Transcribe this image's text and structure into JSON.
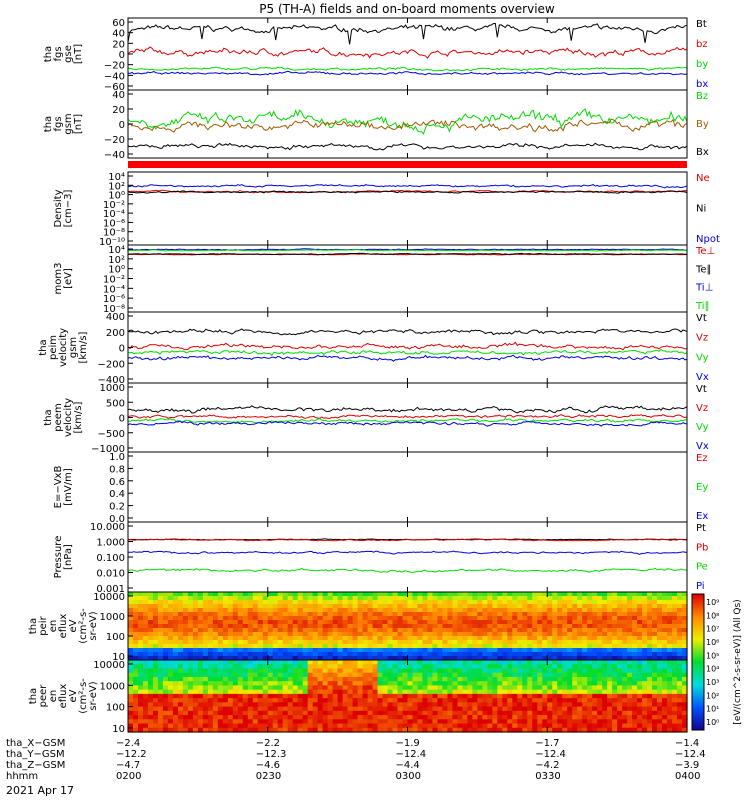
{
  "title": "P5 (TH-A) fields and on-board moments overview",
  "date": "2021 Apr 17",
  "colors": {
    "black": "#000000",
    "red": "#e00000",
    "green": "#00dd00",
    "blue": "#0000dd",
    "dark_red": "#990000",
    "brown": "#a05a00",
    "stripe": "#ff0000"
  },
  "chart_data": [
    {
      "type": "line",
      "id": "fgs_gse",
      "ylabel": [
        "tha",
        "fgs",
        "gse",
        "[nT]"
      ],
      "yticks": [
        "60",
        "40",
        "20",
        "0",
        "−20",
        "−40",
        "−60"
      ],
      "ylim": [
        -65,
        65
      ],
      "log": false,
      "series": [
        {
          "name": "Bt",
          "color": "#000000",
          "level": 45,
          "noise": 9,
          "dips": true
        },
        {
          "name": "bz",
          "color": "#e00000",
          "level": 3,
          "noise": 10
        },
        {
          "name": "by",
          "color": "#00dd00",
          "level": -27,
          "noise": 4
        },
        {
          "name": "bx",
          "color": "#0000dd",
          "level": -35,
          "noise": 4
        }
      ]
    },
    {
      "type": "line",
      "id": "fgs_gsm",
      "ylabel": [
        "tha",
        "fgs",
        "gsm",
        "[nT]"
      ],
      "yticks": [
        "40",
        "20",
        "0",
        "−20",
        "−40"
      ],
      "ylim": [
        -50,
        50
      ],
      "log": false,
      "series": [
        {
          "name": "Bz",
          "color": "#00dd00",
          "level": 5,
          "noise": 16
        },
        {
          "name": "By",
          "color": "#a05a00",
          "level": -2,
          "noise": 12
        },
        {
          "name": "Bx",
          "color": "#000000",
          "level": -33,
          "noise": 6
        }
      ]
    },
    {
      "type": "line",
      "id": "density",
      "ylabel": [
        "Density",
        "[cm−3]"
      ],
      "yticks": [
        "10⁴",
        "10²",
        "10⁰",
        "10⁻²",
        "10⁻⁴",
        "10⁻⁶",
        "10⁻⁸",
        "10⁻¹⁰"
      ],
      "ylim": [
        -10.5,
        4.5
      ],
      "log": true,
      "series": [
        {
          "name": "Ne",
          "color": "#e00000",
          "level": 0.5,
          "noise": 0.3
        },
        {
          "name": "Ni",
          "color": "#000000",
          "level": 0.4,
          "noise": 0.3
        },
        {
          "name": "Npot",
          "color": "#0000dd",
          "level": 1.6,
          "noise": 0.4
        }
      ]
    },
    {
      "type": "line",
      "id": "temperature",
      "ylabel": [
        "mom3",
        "[eV]"
      ],
      "yticks": [
        "10⁴",
        "10²",
        "10⁰",
        "10⁻²",
        "10⁻⁴",
        "10⁻⁶",
        "10⁻⁸"
      ],
      "ylim": [
        -9,
        4.5
      ],
      "log": true,
      "series": [
        {
          "name": "Te⊥",
          "color": "#e00000",
          "level": 2.6,
          "noise": 0.15
        },
        {
          "name": "Te∥",
          "color": "#000000",
          "level": 2.7,
          "noise": 0.15
        },
        {
          "name": "Ti⊥",
          "color": "#0000dd",
          "level": 3.6,
          "noise": 0.15
        },
        {
          "name": "Ti∥",
          "color": "#00dd00",
          "level": 3.4,
          "noise": 0.15
        }
      ]
    },
    {
      "type": "line",
      "id": "peim_velocity",
      "ylabel": [
        "tha",
        "peim",
        "velocity",
        "gsm",
        "[km/s]"
      ],
      "yticks": [
        "400",
        "200",
        "0",
        "−200",
        "−400"
      ],
      "ylim": [
        -440,
        440
      ],
      "log": false,
      "series": [
        {
          "name": "Vt",
          "color": "#000000",
          "level": 200,
          "noise": 45
        },
        {
          "name": "Vz",
          "color": "#e00000",
          "level": 10,
          "noise": 45
        },
        {
          "name": "Vy",
          "color": "#00dd00",
          "level": -60,
          "noise": 40
        },
        {
          "name": "Vx",
          "color": "#0000dd",
          "level": -130,
          "noise": 40
        }
      ]
    },
    {
      "type": "line",
      "id": "peem_velocity",
      "ylabel": [
        "tha",
        "peem",
        "velocity",
        "[km/s]"
      ],
      "yticks": [
        "1000",
        "500",
        "0",
        "−500",
        "−1000"
      ],
      "ylim": [
        -1050,
        1050
      ],
      "log": false,
      "series": [
        {
          "name": "Vt",
          "color": "#000000",
          "level": 250,
          "noise": 120
        },
        {
          "name": "Vz",
          "color": "#e00000",
          "level": 40,
          "noise": 80
        },
        {
          "name": "Vy",
          "color": "#00dd00",
          "level": -100,
          "noise": 80
        },
        {
          "name": "Vx",
          "color": "#0000dd",
          "level": -180,
          "noise": 90
        }
      ]
    },
    {
      "type": "line",
      "id": "efield",
      "ylabel": [
        "E=−VxB",
        "[mV/m]"
      ],
      "yticks": [
        "1.0",
        "0.8",
        "0.6",
        "0.4",
        "0.2",
        "0.0"
      ],
      "ylim": [
        -0.02,
        1.02
      ],
      "log": false,
      "series": [
        {
          "name": "Ez",
          "color": "#e00000"
        },
        {
          "name": "Ey",
          "color": "#00dd00"
        },
        {
          "name": "Ex",
          "color": "#0000dd"
        }
      ]
    },
    {
      "type": "line",
      "id": "pressure",
      "ylabel": [
        "Pressure",
        "[nPa]"
      ],
      "yticks": [
        "10.000",
        "1.000",
        "0.100",
        "0.010",
        "0.001"
      ],
      "ylim": [
        -3,
        1
      ],
      "log": true,
      "series": [
        {
          "name": "Pt",
          "color": "#000000",
          "level": 0.0,
          "noise": 0.04
        },
        {
          "name": "Pb",
          "color": "#e00000",
          "level": -0.03,
          "noise": 0.06
        },
        {
          "name": "Pe",
          "color": "#00dd00",
          "level": -1.75,
          "noise": 0.12
        },
        {
          "name": "Pi",
          "color": "#0000dd",
          "level": -0.75,
          "noise": 0.1
        }
      ]
    },
    {
      "type": "heatmap",
      "id": "peir_spec",
      "ylabel": [
        "tha",
        "peir",
        "en",
        "eflux",
        "eV",
        "(cm²-s-",
        "sr-eV)"
      ],
      "yticks": [
        "10000",
        "1000",
        "100",
        "10"
      ],
      "ylim": [
        5,
        25000
      ],
      "log": true
    },
    {
      "type": "heatmap",
      "id": "peer_spec",
      "ylabel": [
        "tha",
        "peer",
        "en",
        "eflux",
        "eV",
        "(cm²-s-",
        "sr-eV)"
      ],
      "yticks": [
        "10000",
        "1000",
        "100",
        "10"
      ],
      "ylim": [
        5,
        25000
      ],
      "log": true
    }
  ],
  "colorbar": {
    "label": "[eV/(cm^2-s-sr-eV)] (All Qs)",
    "ticks": [
      "10⁹",
      "10⁸",
      "10⁷",
      "10⁶",
      "10⁵",
      "10⁴",
      "10³",
      "10²",
      "10¹",
      "10⁰"
    ],
    "range": [
      0,
      9
    ]
  },
  "ephemeris": {
    "labels": [
      "tha_X−GSM",
      "tha_Y−GSM",
      "tha_Z−GSM",
      "hhmm"
    ],
    "ticks": [
      {
        "time": "0200",
        "x": "−2.4",
        "y": "−12.2",
        "z": "−4.7"
      },
      {
        "time": "0230",
        "x": "−2.2",
        "y": "−12.3",
        "z": "−4.6"
      },
      {
        "time": "0300",
        "x": "−1.9",
        "y": "−12.4",
        "z": "−4.4"
      },
      {
        "time": "0330",
        "x": "−1.7",
        "y": "−12.4",
        "z": "−4.2"
      },
      {
        "time": "0400",
        "x": "−1.4",
        "y": "−12.4",
        "z": "−3.9"
      }
    ],
    "start_hour": "02:00",
    "end_hour": "04:00"
  }
}
